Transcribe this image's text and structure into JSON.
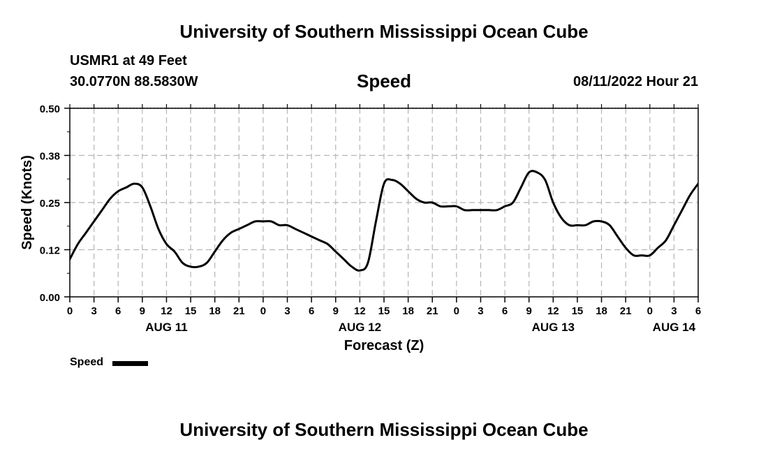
{
  "header": {
    "main_title": "University of Southern Mississippi Ocean Cube",
    "station": "USMR1 at 49 Feet",
    "coords": "30.0770N  88.5830W",
    "datetime": "08/11/2022 Hour 21"
  },
  "footer": {
    "title": "University of Southern Mississippi Ocean Cube"
  },
  "chart_data": {
    "type": "line",
    "title": "Speed",
    "xlabel": "Forecast (Z)",
    "ylabel": "Speed (Knots)",
    "xlim": [
      0,
      78
    ],
    "ylim": [
      0.0,
      0.5
    ],
    "yticks": [
      "0.00",
      "0.12",
      "0.25",
      "0.38",
      "0.50"
    ],
    "xticks": [
      "0",
      "3",
      "6",
      "9",
      "12",
      "15",
      "18",
      "21",
      "0",
      "3",
      "6",
      "9",
      "12",
      "15",
      "18",
      "21",
      "0",
      "3",
      "6",
      "9",
      "12",
      "15",
      "18",
      "21",
      "0",
      "3",
      "6"
    ],
    "day_labels": [
      {
        "label": "AUG 11",
        "x": 12
      },
      {
        "label": "AUG 12",
        "x": 36
      },
      {
        "label": "AUG 13",
        "x": 60
      },
      {
        "label": "AUG 14",
        "x": 75
      }
    ],
    "grid": true,
    "legend": {
      "position": "bottom-left",
      "entries": [
        "Speed"
      ]
    },
    "series": [
      {
        "name": "Speed",
        "color": "#000000",
        "x": [
          0,
          1,
          2,
          3,
          4,
          5,
          6,
          7,
          8,
          9,
          10,
          11,
          12,
          13,
          14,
          15,
          16,
          17,
          18,
          19,
          20,
          21,
          22,
          23,
          24,
          25,
          26,
          27,
          28,
          29,
          30,
          31,
          32,
          33,
          34,
          35,
          36,
          37,
          38,
          39,
          40,
          41,
          42,
          43,
          44,
          45,
          46,
          47,
          48,
          49,
          50,
          51,
          52,
          53,
          54,
          55,
          56,
          57,
          58,
          59,
          60,
          61,
          62,
          63,
          64,
          65,
          66,
          67,
          68,
          69,
          70,
          71,
          72,
          73,
          74,
          75,
          76,
          77,
          78
        ],
        "values": [
          0.1,
          0.14,
          0.17,
          0.2,
          0.23,
          0.26,
          0.28,
          0.29,
          0.3,
          0.29,
          0.24,
          0.18,
          0.14,
          0.12,
          0.09,
          0.08,
          0.08,
          0.09,
          0.12,
          0.15,
          0.17,
          0.18,
          0.19,
          0.2,
          0.2,
          0.2,
          0.19,
          0.19,
          0.18,
          0.17,
          0.16,
          0.15,
          0.14,
          0.12,
          0.1,
          0.08,
          0.07,
          0.09,
          0.2,
          0.3,
          0.31,
          0.3,
          0.28,
          0.26,
          0.25,
          0.25,
          0.24,
          0.24,
          0.24,
          0.23,
          0.23,
          0.23,
          0.23,
          0.23,
          0.24,
          0.25,
          0.29,
          0.33,
          0.33,
          0.31,
          0.25,
          0.21,
          0.19,
          0.19,
          0.19,
          0.2,
          0.2,
          0.19,
          0.16,
          0.13,
          0.11,
          0.11,
          0.11,
          0.13,
          0.15,
          0.19,
          0.23,
          0.27,
          0.3
        ]
      }
    ]
  }
}
